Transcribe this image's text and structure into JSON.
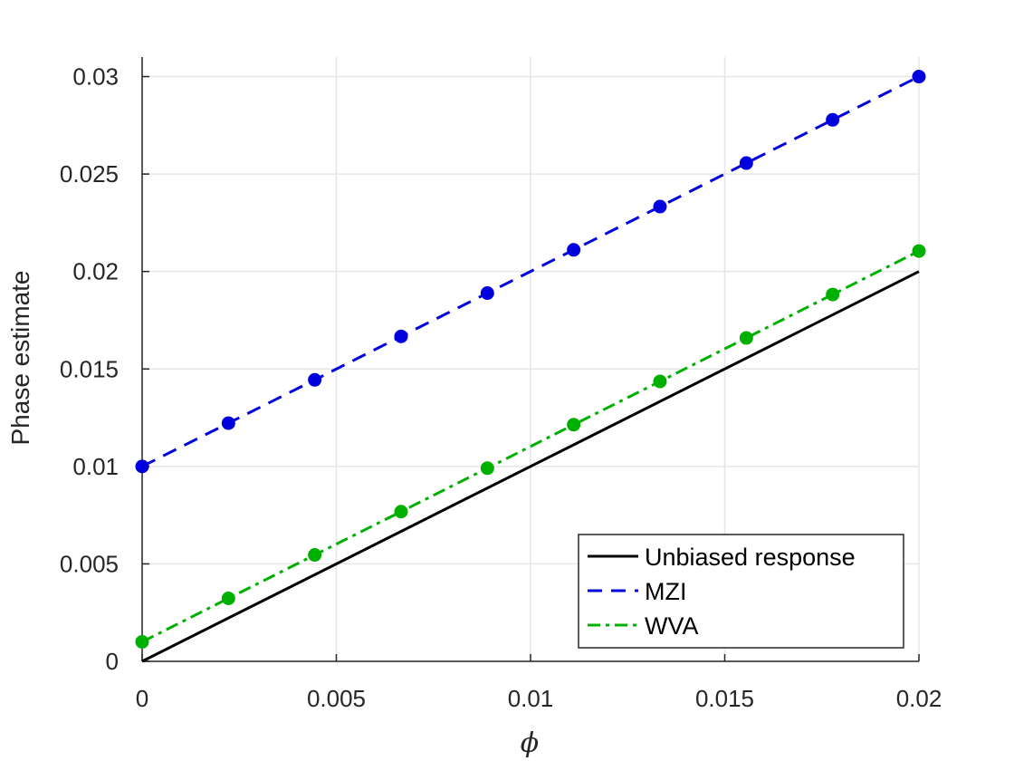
{
  "chart_data": {
    "type": "line",
    "title": "",
    "xlabel": "ϕ",
    "ylabel": "Phase estimate",
    "xlim": [
      0,
      0.02
    ],
    "ylim": [
      0,
      0.031
    ],
    "grid": true,
    "legend_position": "bottom-right",
    "x_ticks": [
      "0",
      "0.005",
      "0.01",
      "0.015",
      "0.02"
    ],
    "y_ticks": [
      "0",
      "0.005",
      "0.01",
      "0.015",
      "0.02",
      "0.025",
      "0.03"
    ],
    "series": [
      {
        "name": "Unbiased response",
        "style": "solid",
        "color": "#000000",
        "markers": false,
        "x": [
          0,
          0.02
        ],
        "y": [
          0,
          0.02
        ]
      },
      {
        "name": "MZI",
        "style": "dashed",
        "color": "#0000dd",
        "markers": true,
        "x": [
          0,
          0.002222,
          0.004444,
          0.006667,
          0.008889,
          0.011111,
          0.013333,
          0.015556,
          0.017778,
          0.02
        ],
        "y": [
          0.01,
          0.01222,
          0.01444,
          0.01667,
          0.01889,
          0.02111,
          0.02333,
          0.02556,
          0.02778,
          0.03
        ]
      },
      {
        "name": "WVA",
        "style": "dashdot",
        "color": "#00b000",
        "markers": true,
        "x": [
          0,
          0.002222,
          0.004444,
          0.006667,
          0.008889,
          0.011111,
          0.013333,
          0.015556,
          0.017778,
          0.02
        ],
        "y": [
          0.001,
          0.00323,
          0.00546,
          0.00768,
          0.00991,
          0.01214,
          0.01436,
          0.01659,
          0.01882,
          0.02105
        ]
      }
    ]
  }
}
